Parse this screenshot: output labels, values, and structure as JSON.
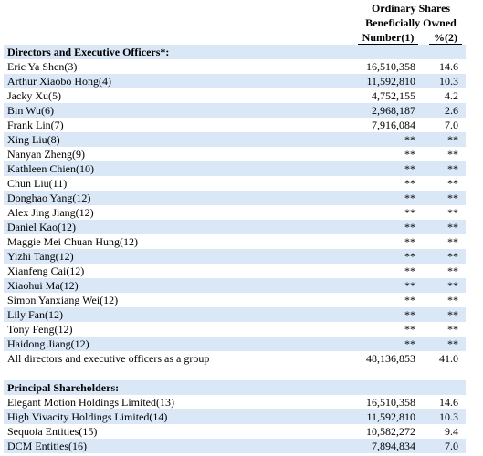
{
  "header": {
    "lines": [
      "Ordinary Shares",
      "Beneficially Owned"
    ],
    "columns": [
      "Number(1)",
      "%(2)"
    ]
  },
  "sections": [
    {
      "title": "Directors and Executive Officers*:",
      "rows": [
        [
          "Eric Ya Shen(3)",
          "16,510,358",
          "14.6"
        ],
        [
          "Arthur Xiaobo Hong(4)",
          "11,592,810",
          "10.3"
        ],
        [
          "Jacky Xu(5)",
          "4,752,155",
          "4.2"
        ],
        [
          "Bin Wu(6)",
          "2,968,187",
          "2.6"
        ],
        [
          "Frank Lin(7)",
          "7,916,084",
          "7.0"
        ],
        [
          "Xing Liu(8)",
          "**",
          "**"
        ],
        [
          "Nanyan Zheng(9)",
          "**",
          "**"
        ],
        [
          "Kathleen Chien(10)",
          "**",
          "**"
        ],
        [
          "Chun Liu(11)",
          "**",
          "**"
        ],
        [
          "Donghao Yang(12)",
          "**",
          "**"
        ],
        [
          "Alex Jing Jiang(12)",
          "**",
          "**"
        ],
        [
          "Daniel Kao(12)",
          "**",
          "**"
        ],
        [
          "Maggie Mei Chuan Hung(12)",
          "**",
          "**"
        ],
        [
          "Yizhi Tang(12)",
          "**",
          "**"
        ],
        [
          "Xianfeng Cai(12)",
          "**",
          "**"
        ],
        [
          "Xiaohui Ma(12)",
          "**",
          "**"
        ],
        [
          "Simon Yanxiang Wei(12)",
          "**",
          "**"
        ],
        [
          "Lily Fan(12)",
          "**",
          "**"
        ],
        [
          "Tony Feng(12)",
          "**",
          "**"
        ],
        [
          "Haidong Jiang(12)",
          "**",
          "**"
        ],
        [
          "All directors and executive officers as a group",
          "48,136,853",
          "41.0"
        ]
      ]
    },
    {
      "title": "Principal Shareholders:",
      "rows": [
        [
          "Elegant Motion Holdings Limited(13)",
          "16,510,358",
          "14.6"
        ],
        [
          "High Vivacity Holdings Limited(14)",
          "11,592,810",
          "10.3"
        ],
        [
          "Sequoia Entities(15)",
          "10,582,272",
          "9.4"
        ],
        [
          "DCM Entities(16)",
          "7,894,834",
          "7.0"
        ]
      ]
    }
  ]
}
